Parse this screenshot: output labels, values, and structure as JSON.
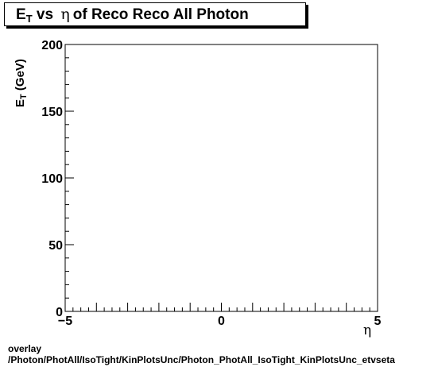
{
  "title": {
    "main": "E",
    "sub": "T",
    "mid": " vs ",
    "greek": "η",
    "rest": "of Reco Reco All Photon"
  },
  "footer": {
    "line1": "overlay",
    "line2": "/Photon/PhotAll/IsoTight/KinPlotsUnc/Photon_PhotAll_IsoTight_KinPlotsUnc_etvseta"
  },
  "chart_data": {
    "type": "scatter",
    "title": "E_T vs η of Reco Reco All Photon",
    "xlabel": "η",
    "ylabel_main": "E",
    "ylabel_sub": "T",
    "ylabel_unit": " (GeV)",
    "xlim": [
      -5,
      5
    ],
    "ylim": [
      0,
      200
    ],
    "x_ticks": [
      -5,
      0,
      5
    ],
    "x_tick_labels": [
      "−5",
      "0",
      "5"
    ],
    "y_ticks": [
      0,
      50,
      100,
      150,
      200
    ],
    "y_tick_labels": [
      "0",
      "50",
      "100",
      "150",
      "200"
    ],
    "grid": false,
    "points": []
  }
}
